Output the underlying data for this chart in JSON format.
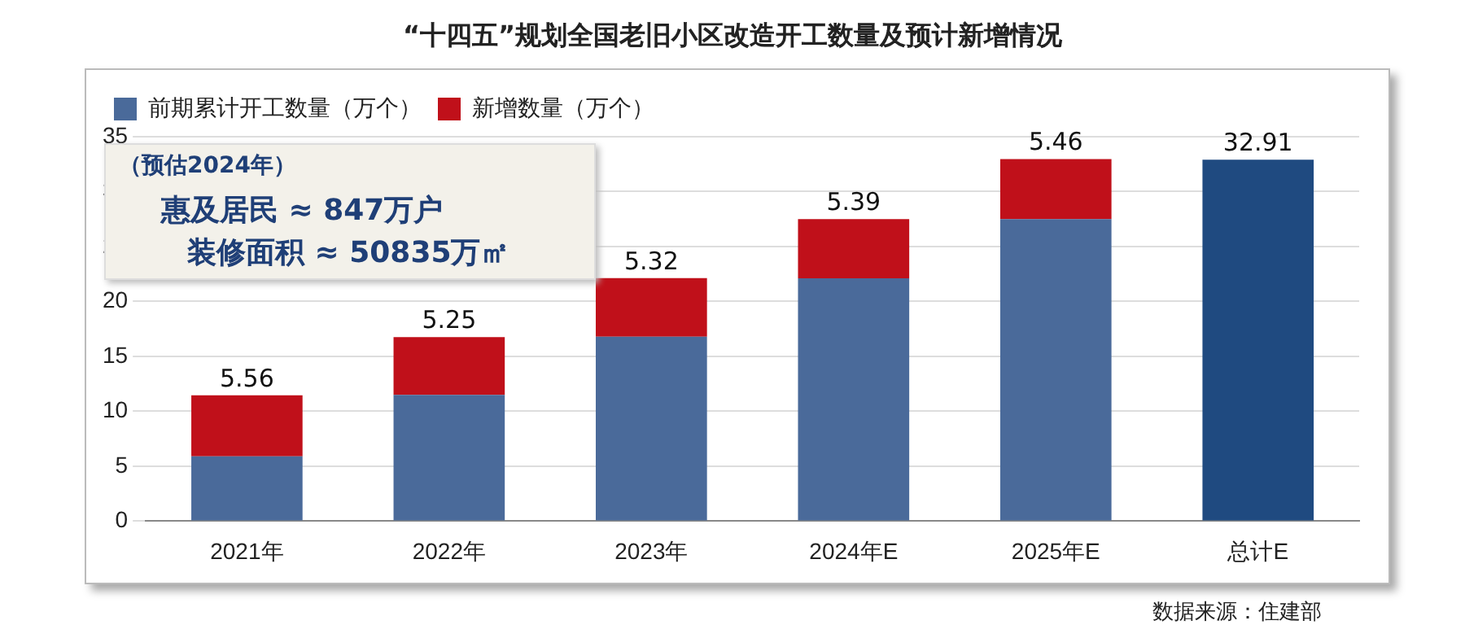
{
  "chart_data": {
    "type": "bar",
    "title": "“十四五”规划全国老旧小区改造开工数量及预计新增情况",
    "categories": [
      "2021年",
      "2022年",
      "2023年",
      "2024年E",
      "2025年E",
      "总计E"
    ],
    "stacked": true,
    "ylim": [
      0,
      35
    ],
    "yticks": [
      0,
      5,
      10,
      15,
      20,
      25,
      30,
      35
    ],
    "grid": "y",
    "legend": "top left",
    "series": [
      {
        "name": "前期累计开工数量（万个）",
        "color": "#4a6a9a",
        "colors": [
          "#4a6a9a",
          "#4a6a9a",
          "#4a6a9a",
          "#4a6a9a",
          "#4a6a9a",
          "#1f4a80"
        ],
        "values": [
          5.9,
          11.5,
          16.8,
          22.1,
          27.5,
          32.91
        ],
        "value_labels": [
          null,
          null,
          null,
          null,
          null,
          "32.91"
        ]
      },
      {
        "name": "新增数量（万个）",
        "color": "#c0101a",
        "values": [
          5.56,
          5.25,
          5.32,
          5.39,
          5.46,
          null
        ],
        "value_labels": [
          "5.56",
          "5.25",
          "5.32",
          "5.39",
          "5.46",
          null
        ]
      }
    ],
    "annotations": [
      "（预估2024年）",
      "惠及居民 ≈ 847万户",
      "装修面积 ≈ 50835万㎡",
      "数据来源：住建部"
    ]
  }
}
